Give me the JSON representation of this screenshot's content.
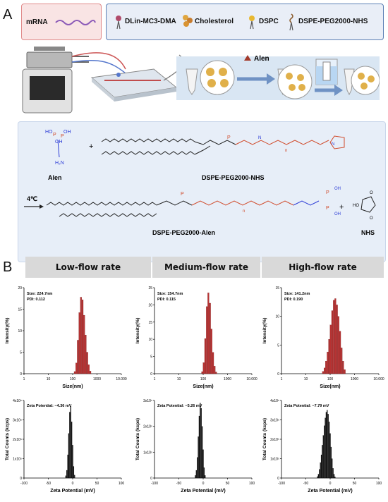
{
  "panel_a": {
    "letter": "A",
    "legend": {
      "mrna": "mRNA",
      "items": [
        {
          "label": "DLin-MC3-DMA",
          "icon": "lipid-icon"
        },
        {
          "label": "Cholesterol",
          "icon": "cholesterol-icon"
        },
        {
          "label": "DSPC",
          "icon": "dspc-icon"
        },
        {
          "label": "DSPE-PEG2000-NHS",
          "icon": "peg-lipid-icon"
        }
      ]
    },
    "reagent": "Alen",
    "reaction": {
      "reactant1": "Alen",
      "reactant2": "DSPE-PEG2000-NHS",
      "condition": "4℃",
      "product": "DSPE-PEG2000-Alen",
      "byproduct": "NHS",
      "plus": "+",
      "groups": {
        "ho": "HO",
        "oh": "OH",
        "p": "P",
        "o": "O",
        "h2n": "H₂N",
        "n": "n",
        "nh": "N",
        "h": "H"
      }
    }
  },
  "panel_b": {
    "letter": "B",
    "headers": [
      "Low-flow rate",
      "Medium-flow rate",
      "High-flow rate"
    ],
    "colors": {
      "size_bar": "#b83232",
      "zeta_bar": "#111111",
      "header_bg": "#d9d9d9"
    }
  },
  "chart_data": [
    {
      "type": "bar",
      "panel": "size-low",
      "annotation": [
        "Size: 224.7nm",
        "PDI: 0.112"
      ],
      "xlabel": "Size(nm)",
      "ylabel": "Intensity(%)",
      "xscale": "log",
      "xlim": [
        1,
        10000
      ],
      "xticks": [
        "1",
        "10",
        "100",
        "1000",
        "10.000"
      ],
      "ylim": [
        0,
        20
      ],
      "yticks": [
        0,
        5,
        10,
        15,
        20
      ],
      "x": [
        122,
        142,
        164,
        190,
        220,
        255,
        295,
        342,
        396,
        458,
        531
      ],
      "values": [
        0.5,
        2.5,
        7.8,
        14.2,
        17.8,
        17.2,
        13.6,
        9.0,
        5.0,
        2.1,
        0.6
      ]
    },
    {
      "type": "bar",
      "panel": "size-medium",
      "annotation": [
        "Size: 154.7nm",
        "PDI: 0.115"
      ],
      "xlabel": "Size(nm)",
      "ylabel": "Intensity(%)",
      "xscale": "log",
      "xlim": [
        1,
        10000
      ],
      "xticks": [
        "1",
        "10",
        "100",
        "1000",
        "10.000"
      ],
      "ylim": [
        0,
        25
      ],
      "yticks": [
        0,
        5,
        10,
        15,
        20,
        25
      ],
      "x": [
        91,
        105,
        122,
        142,
        164,
        190,
        220,
        255,
        295,
        342
      ],
      "values": [
        0.6,
        3.2,
        10.2,
        19.5,
        23.5,
        20.5,
        13.0,
        6.2,
        2.2,
        0.5
      ]
    },
    {
      "type": "bar",
      "panel": "size-high",
      "annotation": [
        "Size: 141.2nm",
        "PDI: 0.190"
      ],
      "xlabel": "Size(nm)",
      "ylabel": "Intensity(%)",
      "xscale": "log",
      "xlim": [
        1,
        10000
      ],
      "xticks": [
        "1",
        "10",
        "100",
        "1000",
        "10.000"
      ],
      "ylim": [
        0,
        15
      ],
      "yticks": [
        0,
        5,
        10,
        15
      ],
      "x": [
        51,
        59,
        68,
        79,
        91,
        105,
        122,
        142,
        164,
        190,
        220,
        255,
        295,
        342,
        396
      ],
      "values": [
        0.4,
        1.0,
        2.2,
        3.8,
        6.0,
        8.5,
        11.0,
        12.8,
        13.1,
        12.0,
        10.0,
        7.4,
        4.5,
        2.2,
        0.7
      ]
    },
    {
      "type": "bar",
      "panel": "zeta-low",
      "annotation": "Zeta Potential: −4.36 mV",
      "xlabel": "Zeta Potential (mV)",
      "ylabel": "Total Counts (kcps)",
      "xlim": [
        -100,
        100
      ],
      "xticks": [
        -100,
        -50,
        0,
        50,
        100
      ],
      "ylim": [
        0,
        400000
      ],
      "yticks": [
        0,
        100000,
        200000,
        300000,
        400000
      ],
      "ytick_labels": [
        "0",
        "1x10⁵",
        "2x10⁵",
        "3x10⁵",
        "4x10⁵"
      ],
      "x": [
        -14,
        -12,
        -10,
        -8,
        -6,
        -4,
        -2,
        0,
        2,
        4
      ],
      "values": [
        12000,
        40000,
        120000,
        230000,
        340000,
        370000,
        290000,
        170000,
        60000,
        15000
      ]
    },
    {
      "type": "bar",
      "panel": "zeta-medium",
      "annotation": "Zeta Potential: −5.26 mV",
      "xlabel": "Zeta Potential (mV)",
      "ylabel": "Total Counts (kcps)",
      "xlim": [
        -100,
        100
      ],
      "xticks": [
        -100,
        -50,
        0,
        50,
        100
      ],
      "ylim": [
        0,
        300000
      ],
      "yticks": [
        0,
        100000,
        200000,
        300000
      ],
      "ytick_labels": [
        "0",
        "1x10⁵",
        "2x10⁵",
        "3x10⁵"
      ],
      "x": [
        -16,
        -14,
        -12,
        -10,
        -8,
        -6,
        -4,
        -2,
        0,
        2,
        4
      ],
      "values": [
        10000,
        30000,
        80000,
        160000,
        240000,
        290000,
        270000,
        200000,
        110000,
        40000,
        10000
      ]
    },
    {
      "type": "bar",
      "panel": "zeta-high",
      "annotation": "Zeta Potential: −7.79 mV",
      "xlabel": "Zeta Potential (mV)",
      "ylabel": "Total Counts (kcps)",
      "xlim": [
        -100,
        100
      ],
      "xticks": [
        -100,
        -50,
        0,
        50,
        100
      ],
      "ylim": [
        0,
        400000
      ],
      "yticks": [
        0,
        100000,
        200000,
        300000,
        400000
      ],
      "ytick_labels": [
        "0",
        "1x10⁵",
        "2x10⁵",
        "3x10⁵",
        "4x10⁵"
      ],
      "x": [
        -26,
        -24,
        -22,
        -20,
        -18,
        -16,
        -14,
        -12,
        -10,
        -8,
        -6,
        -4,
        -2,
        0,
        2,
        4,
        6,
        8,
        10
      ],
      "values": [
        8000,
        20000,
        45000,
        80000,
        120000,
        170000,
        220000,
        270000,
        310000,
        340000,
        350000,
        330000,
        290000,
        230000,
        160000,
        100000,
        50000,
        20000,
        6000
      ]
    }
  ]
}
